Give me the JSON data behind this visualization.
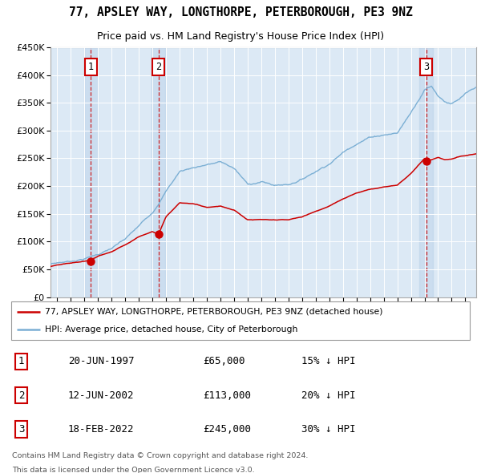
{
  "title1": "77, APSLEY WAY, LONGTHORPE, PETERBOROUGH, PE3 9NZ",
  "title2": "Price paid vs. HM Land Registry's House Price Index (HPI)",
  "legend_line1": "77, APSLEY WAY, LONGTHORPE, PETERBOROUGH, PE3 9NZ (detached house)",
  "legend_line2": "HPI: Average price, detached house, City of Peterborough",
  "sale_color": "#cc0000",
  "hpi_color": "#7bafd4",
  "plot_bg": "#dce9f5",
  "annotations": [
    {
      "n": 1,
      "date": "20-JUN-1997",
      "price": 65000,
      "pct": "15% ↓ HPI",
      "x_year": 1997.46
    },
    {
      "n": 2,
      "date": "12-JUN-2002",
      "price": 113000,
      "pct": "20% ↓ HPI",
      "x_year": 2002.44
    },
    {
      "n": 3,
      "date": "18-FEB-2022",
      "price": 245000,
      "pct": "30% ↓ HPI",
      "x_year": 2022.12
    }
  ],
  "footer1": "Contains HM Land Registry data © Crown copyright and database right 2024.",
  "footer2": "This data is licensed under the Open Government Licence v3.0.",
  "ylim": [
    0,
    450000
  ],
  "xlim_start": 1994.5,
  "xlim_end": 2025.8,
  "hpi_knots": [
    [
      1994.5,
      60000
    ],
    [
      1995,
      62000
    ],
    [
      1996,
      65000
    ],
    [
      1997,
      70000
    ],
    [
      1998,
      78000
    ],
    [
      1999,
      88000
    ],
    [
      2000,
      103000
    ],
    [
      2001,
      125000
    ],
    [
      2002,
      150000
    ],
    [
      2003,
      190000
    ],
    [
      2004,
      225000
    ],
    [
      2005,
      232000
    ],
    [
      2006,
      238000
    ],
    [
      2007,
      242000
    ],
    [
      2008,
      230000
    ],
    [
      2009,
      200000
    ],
    [
      2010,
      205000
    ],
    [
      2011,
      198000
    ],
    [
      2012,
      200000
    ],
    [
      2013,
      210000
    ],
    [
      2014,
      225000
    ],
    [
      2015,
      240000
    ],
    [
      2016,
      260000
    ],
    [
      2017,
      278000
    ],
    [
      2018,
      290000
    ],
    [
      2019,
      295000
    ],
    [
      2020,
      298000
    ],
    [
      2021,
      335000
    ],
    [
      2022,
      378000
    ],
    [
      2022.5,
      385000
    ],
    [
      2023,
      368000
    ],
    [
      2023.5,
      358000
    ],
    [
      2024,
      355000
    ],
    [
      2024.5,
      360000
    ],
    [
      2025,
      370000
    ],
    [
      2025.8,
      378000
    ]
  ],
  "sale_knots": [
    [
      1994.5,
      55000
    ],
    [
      1995,
      57000
    ],
    [
      1996,
      60000
    ],
    [
      1997,
      63000
    ],
    [
      1997.46,
      65000
    ],
    [
      1998,
      72000
    ],
    [
      1999,
      80000
    ],
    [
      2000,
      93000
    ],
    [
      2001,
      108000
    ],
    [
      2002,
      118000
    ],
    [
      2002.44,
      113000
    ],
    [
      2003,
      145000
    ],
    [
      2004,
      170000
    ],
    [
      2005,
      168000
    ],
    [
      2006,
      162000
    ],
    [
      2007,
      165000
    ],
    [
      2008,
      158000
    ],
    [
      2009,
      140000
    ],
    [
      2010,
      140000
    ],
    [
      2011,
      138000
    ],
    [
      2012,
      138000
    ],
    [
      2013,
      143000
    ],
    [
      2014,
      153000
    ],
    [
      2015,
      163000
    ],
    [
      2016,
      175000
    ],
    [
      2017,
      185000
    ],
    [
      2018,
      193000
    ],
    [
      2019,
      197000
    ],
    [
      2020,
      200000
    ],
    [
      2021,
      222000
    ],
    [
      2022,
      250000
    ],
    [
      2022.12,
      245000
    ],
    [
      2022.5,
      248000
    ],
    [
      2023,
      252000
    ],
    [
      2023.5,
      248000
    ],
    [
      2024,
      250000
    ],
    [
      2024.5,
      253000
    ],
    [
      2025,
      255000
    ],
    [
      2025.8,
      258000
    ]
  ]
}
